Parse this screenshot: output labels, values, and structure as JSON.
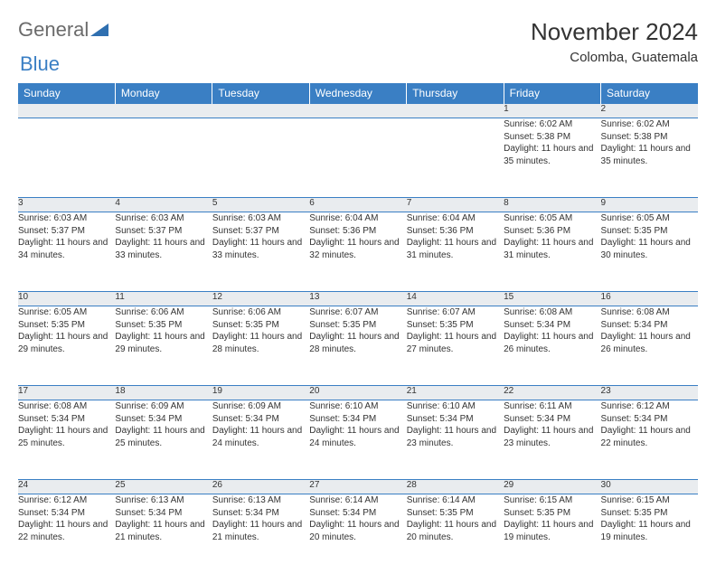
{
  "logo": {
    "part1": "General",
    "part2": "Blue",
    "triangle_color": "#2f6fb0"
  },
  "header": {
    "month": "November 2024",
    "location": "Colomba, Guatemala"
  },
  "colors": {
    "header_bg": "#3a7fc4",
    "header_text": "#ffffff",
    "daynum_bg": "#e9ecef",
    "border": "#3a7fc4",
    "text": "#333333",
    "logo_gray": "#6b6b6b",
    "logo_blue": "#3a7fc4"
  },
  "weekdays": [
    "Sunday",
    "Monday",
    "Tuesday",
    "Wednesday",
    "Thursday",
    "Friday",
    "Saturday"
  ],
  "weeks": [
    [
      null,
      null,
      null,
      null,
      null,
      {
        "n": "1",
        "sr": "Sunrise: 6:02 AM",
        "ss": "Sunset: 5:38 PM",
        "dl": "Daylight: 11 hours and 35 minutes."
      },
      {
        "n": "2",
        "sr": "Sunrise: 6:02 AM",
        "ss": "Sunset: 5:38 PM",
        "dl": "Daylight: 11 hours and 35 minutes."
      }
    ],
    [
      {
        "n": "3",
        "sr": "Sunrise: 6:03 AM",
        "ss": "Sunset: 5:37 PM",
        "dl": "Daylight: 11 hours and 34 minutes."
      },
      {
        "n": "4",
        "sr": "Sunrise: 6:03 AM",
        "ss": "Sunset: 5:37 PM",
        "dl": "Daylight: 11 hours and 33 minutes."
      },
      {
        "n": "5",
        "sr": "Sunrise: 6:03 AM",
        "ss": "Sunset: 5:37 PM",
        "dl": "Daylight: 11 hours and 33 minutes."
      },
      {
        "n": "6",
        "sr": "Sunrise: 6:04 AM",
        "ss": "Sunset: 5:36 PM",
        "dl": "Daylight: 11 hours and 32 minutes."
      },
      {
        "n": "7",
        "sr": "Sunrise: 6:04 AM",
        "ss": "Sunset: 5:36 PM",
        "dl": "Daylight: 11 hours and 31 minutes."
      },
      {
        "n": "8",
        "sr": "Sunrise: 6:05 AM",
        "ss": "Sunset: 5:36 PM",
        "dl": "Daylight: 11 hours and 31 minutes."
      },
      {
        "n": "9",
        "sr": "Sunrise: 6:05 AM",
        "ss": "Sunset: 5:35 PM",
        "dl": "Daylight: 11 hours and 30 minutes."
      }
    ],
    [
      {
        "n": "10",
        "sr": "Sunrise: 6:05 AM",
        "ss": "Sunset: 5:35 PM",
        "dl": "Daylight: 11 hours and 29 minutes."
      },
      {
        "n": "11",
        "sr": "Sunrise: 6:06 AM",
        "ss": "Sunset: 5:35 PM",
        "dl": "Daylight: 11 hours and 29 minutes."
      },
      {
        "n": "12",
        "sr": "Sunrise: 6:06 AM",
        "ss": "Sunset: 5:35 PM",
        "dl": "Daylight: 11 hours and 28 minutes."
      },
      {
        "n": "13",
        "sr": "Sunrise: 6:07 AM",
        "ss": "Sunset: 5:35 PM",
        "dl": "Daylight: 11 hours and 28 minutes."
      },
      {
        "n": "14",
        "sr": "Sunrise: 6:07 AM",
        "ss": "Sunset: 5:35 PM",
        "dl": "Daylight: 11 hours and 27 minutes."
      },
      {
        "n": "15",
        "sr": "Sunrise: 6:08 AM",
        "ss": "Sunset: 5:34 PM",
        "dl": "Daylight: 11 hours and 26 minutes."
      },
      {
        "n": "16",
        "sr": "Sunrise: 6:08 AM",
        "ss": "Sunset: 5:34 PM",
        "dl": "Daylight: 11 hours and 26 minutes."
      }
    ],
    [
      {
        "n": "17",
        "sr": "Sunrise: 6:08 AM",
        "ss": "Sunset: 5:34 PM",
        "dl": "Daylight: 11 hours and 25 minutes."
      },
      {
        "n": "18",
        "sr": "Sunrise: 6:09 AM",
        "ss": "Sunset: 5:34 PM",
        "dl": "Daylight: 11 hours and 25 minutes."
      },
      {
        "n": "19",
        "sr": "Sunrise: 6:09 AM",
        "ss": "Sunset: 5:34 PM",
        "dl": "Daylight: 11 hours and 24 minutes."
      },
      {
        "n": "20",
        "sr": "Sunrise: 6:10 AM",
        "ss": "Sunset: 5:34 PM",
        "dl": "Daylight: 11 hours and 24 minutes."
      },
      {
        "n": "21",
        "sr": "Sunrise: 6:10 AM",
        "ss": "Sunset: 5:34 PM",
        "dl": "Daylight: 11 hours and 23 minutes."
      },
      {
        "n": "22",
        "sr": "Sunrise: 6:11 AM",
        "ss": "Sunset: 5:34 PM",
        "dl": "Daylight: 11 hours and 23 minutes."
      },
      {
        "n": "23",
        "sr": "Sunrise: 6:12 AM",
        "ss": "Sunset: 5:34 PM",
        "dl": "Daylight: 11 hours and 22 minutes."
      }
    ],
    [
      {
        "n": "24",
        "sr": "Sunrise: 6:12 AM",
        "ss": "Sunset: 5:34 PM",
        "dl": "Daylight: 11 hours and 22 minutes."
      },
      {
        "n": "25",
        "sr": "Sunrise: 6:13 AM",
        "ss": "Sunset: 5:34 PM",
        "dl": "Daylight: 11 hours and 21 minutes."
      },
      {
        "n": "26",
        "sr": "Sunrise: 6:13 AM",
        "ss": "Sunset: 5:34 PM",
        "dl": "Daylight: 11 hours and 21 minutes."
      },
      {
        "n": "27",
        "sr": "Sunrise: 6:14 AM",
        "ss": "Sunset: 5:34 PM",
        "dl": "Daylight: 11 hours and 20 minutes."
      },
      {
        "n": "28",
        "sr": "Sunrise: 6:14 AM",
        "ss": "Sunset: 5:35 PM",
        "dl": "Daylight: 11 hours and 20 minutes."
      },
      {
        "n": "29",
        "sr": "Sunrise: 6:15 AM",
        "ss": "Sunset: 5:35 PM",
        "dl": "Daylight: 11 hours and 19 minutes."
      },
      {
        "n": "30",
        "sr": "Sunrise: 6:15 AM",
        "ss": "Sunset: 5:35 PM",
        "dl": "Daylight: 11 hours and 19 minutes."
      }
    ]
  ]
}
